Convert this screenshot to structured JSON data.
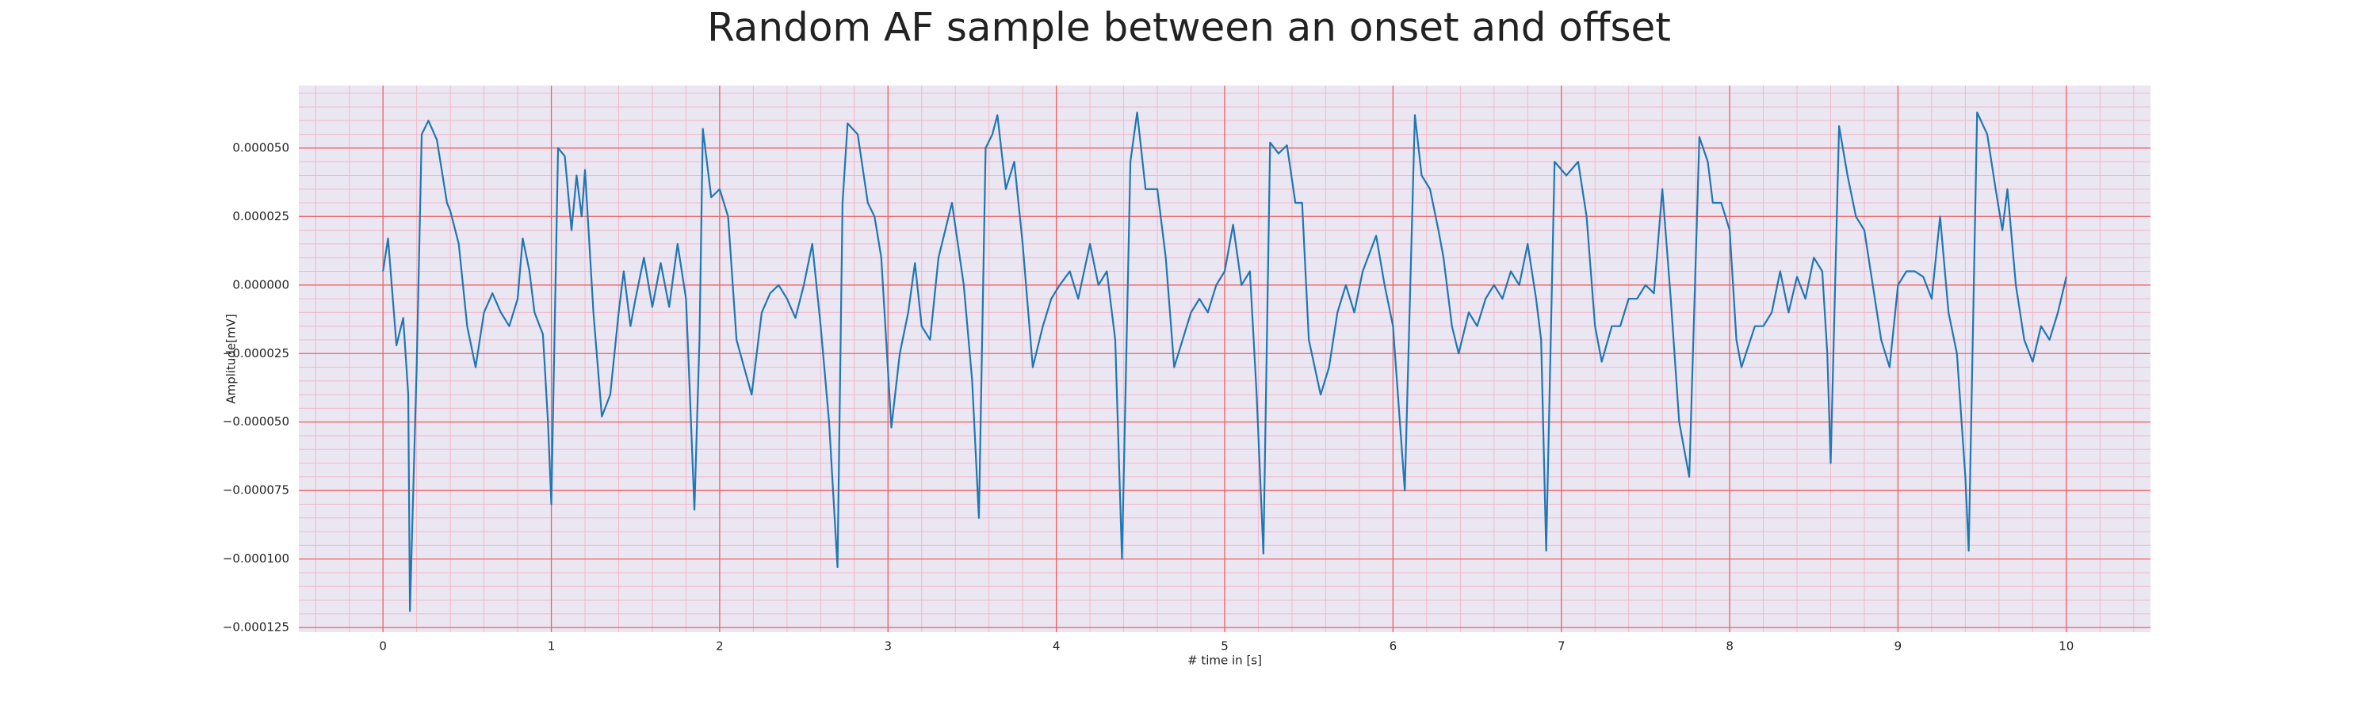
{
  "chart_data": {
    "type": "line",
    "title": "Random AF sample between an onset and offset",
    "xlabel": "# time in [s]",
    "ylabel": "Amplitude[mV]",
    "color": "#1f77b4",
    "grid": true,
    "minor_grid": true,
    "xlim": [
      -0.5,
      10.5
    ],
    "ylim": [
      -0.0001267,
      7.28e-05
    ],
    "xticks": [
      0,
      1,
      2,
      3,
      4,
      5,
      6,
      7,
      8,
      9,
      10
    ],
    "yticks": [
      {
        "value": -0.000125,
        "label": "−0.000125"
      },
      {
        "value": -0.0001,
        "label": "−0.000100"
      },
      {
        "value": -7.5e-05,
        "label": "−0.000075"
      },
      {
        "value": -5e-05,
        "label": "−0.000050"
      },
      {
        "value": -2.5e-05,
        "label": "−0.000025"
      },
      {
        "value": 0,
        "label": "0.000000"
      },
      {
        "value": 2.5e-05,
        "label": "0.000025"
      },
      {
        "value": 5e-05,
        "label": "0.000050"
      }
    ],
    "x": [
      0,
      0.03,
      0.08,
      0.12,
      0.15,
      0.16,
      0.2,
      0.23,
      0.27,
      0.32,
      0.38,
      0.4,
      0.45,
      0.5,
      0.55,
      0.6,
      0.65,
      0.7,
      0.75,
      0.8,
      0.83,
      0.87,
      0.9,
      0.95,
      0.98,
      1.0,
      1.04,
      1.08,
      1.12,
      1.15,
      1.18,
      1.2,
      1.25,
      1.3,
      1.35,
      1.4,
      1.43,
      1.47,
      1.5,
      1.55,
      1.6,
      1.65,
      1.7,
      1.75,
      1.8,
      1.82,
      1.85,
      1.88,
      1.9,
      1.95,
      2.0,
      2.05,
      2.1,
      2.19,
      2.25,
      2.3,
      2.35,
      2.4,
      2.45,
      2.5,
      2.55,
      2.6,
      2.65,
      2.7,
      2.73,
      2.76,
      2.82,
      2.88,
      2.92,
      2.96,
      3.02,
      3.07,
      3.12,
      3.16,
      3.2,
      3.25,
      3.3,
      3.34,
      3.38,
      3.45,
      3.5,
      3.54,
      3.58,
      3.62,
      3.65,
      3.7,
      3.75,
      3.8,
      3.86,
      3.92,
      3.97,
      4.02,
      4.08,
      4.13,
      4.2,
      4.25,
      4.3,
      4.35,
      4.39,
      4.44,
      4.48,
      4.53,
      4.6,
      4.65,
      4.7,
      4.75,
      4.8,
      4.85,
      4.9,
      4.95,
      5.0,
      5.05,
      5.1,
      5.15,
      5.19,
      5.23,
      5.27,
      5.32,
      5.37,
      5.42,
      5.46,
      5.5,
      5.57,
      5.62,
      5.67,
      5.72,
      5.77,
      5.82,
      5.9,
      5.95,
      6.0,
      6.07,
      6.13,
      6.17,
      6.22,
      6.27,
      6.3,
      6.35,
      6.39,
      6.45,
      6.5,
      6.55,
      6.6,
      6.65,
      6.7,
      6.75,
      6.8,
      6.85,
      6.88,
      6.91,
      6.96,
      7.03,
      7.1,
      7.15,
      7.2,
      7.24,
      7.3,
      7.35,
      7.4,
      7.45,
      7.5,
      7.55,
      7.6,
      7.65,
      7.7,
      7.76,
      7.82,
      7.87,
      7.9,
      7.95,
      8.0,
      8.04,
      8.07,
      8.15,
      8.2,
      8.25,
      8.3,
      8.35,
      8.4,
      8.45,
      8.5,
      8.55,
      8.58,
      8.6,
      8.65,
      8.7,
      8.75,
      8.8,
      8.85,
      8.9,
      8.95,
      9.0,
      9.05,
      9.1,
      9.15,
      9.2,
      9.25,
      9.3,
      9.35,
      9.4,
      9.42,
      9.47,
      9.53,
      9.58,
      9.62,
      9.65,
      9.7,
      9.75,
      9.8,
      9.85,
      9.9,
      9.95,
      10.0
    ],
    "values": [
      5e-06,
      1.7e-05,
      -2.2e-05,
      -1.2e-05,
      -4e-05,
      -0.000119,
      -3e-05,
      5.5e-05,
      6e-05,
      5.3e-05,
      3e-05,
      2.7e-05,
      1.5e-05,
      -1.5e-05,
      -3e-05,
      -1e-05,
      -3e-06,
      -1e-05,
      -1.5e-05,
      -5e-06,
      1.7e-05,
      5e-06,
      -1e-05,
      -1.8e-05,
      -5e-05,
      -8e-05,
      5e-05,
      4.7e-05,
      2e-05,
      4e-05,
      2.5e-05,
      4.2e-05,
      -1e-05,
      -4.8e-05,
      -4e-05,
      -1e-05,
      5e-06,
      -1.5e-05,
      -5e-06,
      1e-05,
      -8e-06,
      8e-06,
      -8e-06,
      1.5e-05,
      -5e-06,
      -3.5e-05,
      -8.2e-05,
      -2e-05,
      5.7e-05,
      3.2e-05,
      3.5e-05,
      2.5e-05,
      -2e-05,
      -4e-05,
      -1e-05,
      -3e-06,
      0,
      -5e-06,
      -1.2e-05,
      0,
      1.5e-05,
      -1.5e-05,
      -5e-05,
      -0.000103,
      3e-05,
      5.9e-05,
      5.5e-05,
      3e-05,
      2.5e-05,
      1e-05,
      -5.2e-05,
      -2.5e-05,
      -1e-05,
      8e-06,
      -1.5e-05,
      -2e-05,
      1e-05,
      2e-05,
      3e-05,
      0,
      -3.5e-05,
      -8.5e-05,
      5e-05,
      5.5e-05,
      6.2e-05,
      3.5e-05,
      4.5e-05,
      1.5e-05,
      -3e-05,
      -1.5e-05,
      -5e-06,
      0,
      5e-06,
      -5e-06,
      1.5e-05,
      0,
      5e-06,
      -2e-05,
      -0.0001,
      4.5e-05,
      6.3e-05,
      3.5e-05,
      3.5e-05,
      1e-05,
      -3e-05,
      -2e-05,
      -1e-05,
      -5e-06,
      -1e-05,
      0,
      5e-06,
      2.2e-05,
      0,
      5e-06,
      -4e-05,
      -9.8e-05,
      5.2e-05,
      4.8e-05,
      5.1e-05,
      3e-05,
      3e-05,
      -2e-05,
      -4e-05,
      -3e-05,
      -1e-05,
      0,
      -1e-05,
      5e-06,
      1.8e-05,
      0,
      -1.5e-05,
      -7.5e-05,
      6.2e-05,
      4e-05,
      3.5e-05,
      2e-05,
      1e-05,
      -1.5e-05,
      -2.5e-05,
      -1e-05,
      -1.5e-05,
      -5e-06,
      0,
      -5e-06,
      5e-06,
      0,
      1.5e-05,
      -5e-06,
      -2e-05,
      -9.7e-05,
      4.5e-05,
      4e-05,
      4.5e-05,
      2.5e-05,
      -1.5e-05,
      -2.8e-05,
      -1.5e-05,
      -1.5e-05,
      -5e-06,
      -5e-06,
      0,
      -3e-06,
      3.5e-05,
      -5e-06,
      -5e-05,
      -7e-05,
      5.4e-05,
      4.5e-05,
      3e-05,
      3e-05,
      2e-05,
      -2e-05,
      -3e-05,
      -1.5e-05,
      -1.5e-05,
      -1e-05,
      5e-06,
      -1e-05,
      3e-06,
      -5e-06,
      1e-05,
      5e-06,
      -2.5e-05,
      -6.5e-05,
      5.8e-05,
      4e-05,
      2.5e-05,
      2e-05,
      0,
      -2e-05,
      -3e-05,
      0,
      5e-06,
      5e-06,
      3e-06,
      -5e-06,
      2.5e-05,
      -1e-05,
      -2.5e-05,
      -7e-05,
      -9.7e-05,
      6.3e-05,
      5.5e-05,
      3.5e-05,
      2e-05,
      3.5e-05,
      0,
      -2e-05,
      -2.8e-05,
      -1.5e-05,
      -2e-05,
      -1e-05,
      3e-06
    ]
  }
}
